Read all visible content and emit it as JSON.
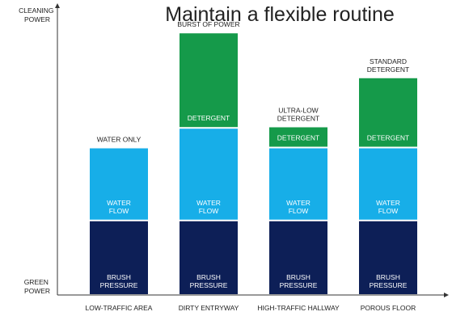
{
  "chart_data": {
    "type": "bar",
    "stacked": true,
    "title": "Maintain a flexible routine",
    "y_axis": {
      "top_label": [
        "CLEANING",
        "POWER"
      ],
      "bottom_label": [
        "GREEN",
        "POWER"
      ]
    },
    "categories": [
      "LOW-TRAFFIC AREA",
      "DIRTY ENTRYWAY",
      "HIGH-TRAFFIC HALLWAY",
      "POROUS FLOOR"
    ],
    "series": [
      {
        "key": "brush",
        "color": "#0d1f57",
        "segment_label": [
          "BRUSH",
          "PRESSURE"
        ],
        "values": [
          26,
          26,
          26,
          26
        ]
      },
      {
        "key": "water",
        "color": "#17aee8",
        "segment_label": [
          "WATER",
          "FLOW"
        ],
        "values": [
          26,
          33,
          26,
          26
        ]
      },
      {
        "key": "detergent",
        "color": "#159a4a",
        "segment_label": [
          "DETERGENT"
        ],
        "values": [
          0,
          34,
          7.5,
          25
        ]
      }
    ],
    "annotations": [
      [
        "WATER ONLY"
      ],
      [
        "BURST OF POWER"
      ],
      [
        "ULTRA-LOW",
        "DETERGENT"
      ],
      [
        "STANDARD",
        "DETERGENT"
      ]
    ],
    "ylim": [
      0,
      102
    ],
    "grid": false,
    "legend": "none",
    "axis_color": "#333333"
  }
}
